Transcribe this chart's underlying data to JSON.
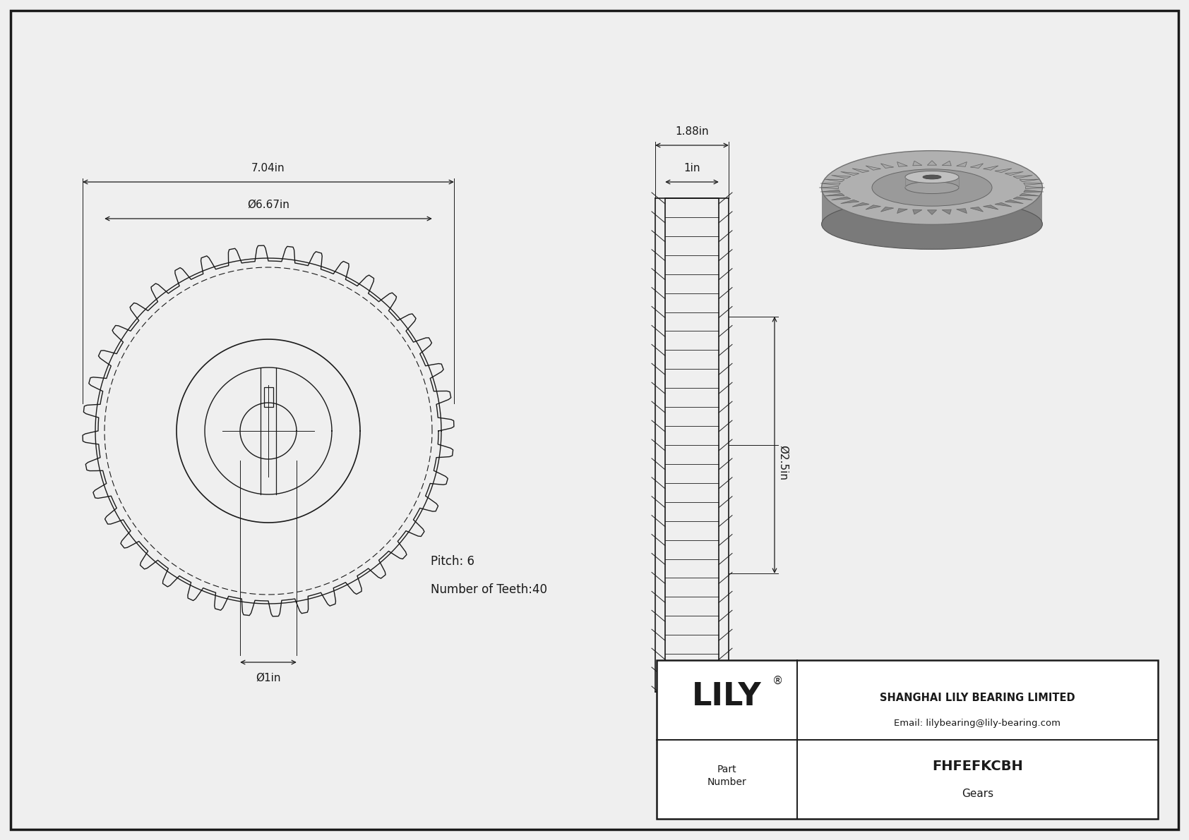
{
  "bg_color": "#efefef",
  "line_color": "#1a1a1a",
  "dim_color": "#1a1a1a",
  "part_number": "FHFEFKCBH",
  "part_type": "Gears",
  "company": "SHANGHAI LILY BEARING LIMITED",
  "email": "Email: lilybearing@lily-bearing.com",
  "pitch": "Pitch: 6",
  "num_teeth": "Number of Teeth:40",
  "dim_outer": "7.04in",
  "dim_pitch": "Ø6.67in",
  "dim_bore": "Ø1in",
  "dim_width": "1.88in",
  "dim_hub_width": "1in",
  "dim_pitch_dia": "Ø2.5in",
  "num_teeth_count": 40,
  "fig_w": 16.84,
  "fig_h": 11.91,
  "dpi": 100
}
